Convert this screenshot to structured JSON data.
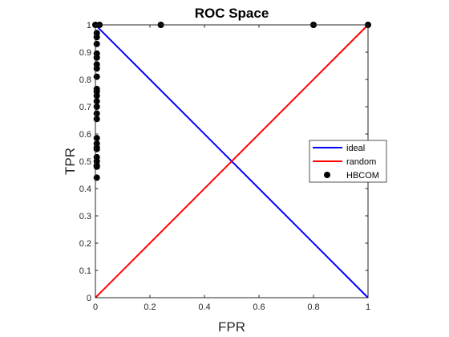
{
  "chart_data": {
    "type": "line",
    "title": "ROC Space",
    "xlabel": "FPR",
    "ylabel": "TPR",
    "xlim": [
      0,
      1
    ],
    "ylim": [
      0,
      1
    ],
    "x_ticks": [
      0,
      0.2,
      0.4,
      0.6,
      0.8,
      1
    ],
    "x_tick_labels": [
      "0",
      "0.2",
      "0.4",
      "0.6",
      "0.8",
      "1"
    ],
    "y_ticks": [
      0,
      0.1,
      0.2,
      0.3,
      0.4,
      0.5,
      0.6,
      0.7,
      0.8,
      0.9,
      1
    ],
    "y_tick_labels": [
      "0",
      "0.1",
      "0.2",
      "0.3",
      "0.4",
      "0.5",
      "0.6",
      "0.7",
      "0.8",
      "0.9",
      "1"
    ],
    "grid": false,
    "box": true,
    "legend_position": "right",
    "series": [
      {
        "name": "ideal",
        "kind": "line",
        "color": "#0000ff",
        "x": [
          0,
          1
        ],
        "y": [
          1,
          0
        ]
      },
      {
        "name": "random",
        "kind": "line",
        "color": "#ff0000",
        "x": [
          0,
          1
        ],
        "y": [
          0,
          1
        ]
      },
      {
        "name": "HBCOM",
        "kind": "scatter",
        "color": "#000000",
        "x": [
          0,
          0.015,
          0.24,
          0.8,
          1,
          0.005,
          0.005,
          0.005,
          0.005,
          0.005,
          0.005,
          0.005,
          0.005,
          0.005,
          0.005,
          0.005,
          0.005,
          0.005,
          0.005,
          0.005,
          0.005,
          0.005,
          0.005,
          0.005,
          0.005,
          0.005,
          0.005,
          0.005,
          0.005
        ],
        "y": [
          1,
          1,
          1,
          1,
          1,
          0.955,
          0.93,
          0.895,
          0.88,
          0.855,
          0.84,
          0.81,
          0.765,
          0.755,
          0.74,
          0.72,
          0.7,
          0.675,
          0.655,
          0.585,
          0.565,
          0.55,
          0.545,
          0.515,
          0.5,
          0.485,
          0.48,
          0.44,
          0.97
        ]
      }
    ]
  }
}
